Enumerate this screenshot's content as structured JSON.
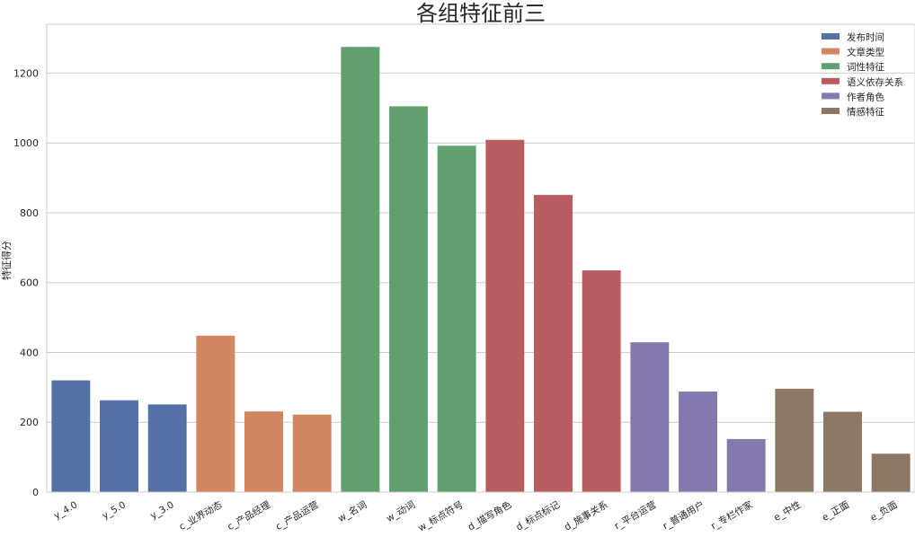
{
  "chart_data": {
    "type": "bar",
    "title": "各组特征前三",
    "xlabel": "",
    "ylabel": "特征得分",
    "ylim": [
      0,
      1340
    ],
    "yticks": [
      0,
      200,
      400,
      600,
      800,
      1000,
      1200
    ],
    "grid": "horizontal",
    "legend_position": "top-right",
    "categories": [
      "y_4.0",
      "y_5.0",
      "y_3.0",
      "c_业界动态",
      "c_产品经理",
      "c_产品运营",
      "w_名词",
      "w_动词",
      "w_标点符号",
      "d_描写角色",
      "d_标点标记",
      "d_施事关系",
      "r_平台运营",
      "r_普通用户",
      "r_专栏作家",
      "e_中性",
      "e_正面",
      "e_负面"
    ],
    "values": [
      320,
      263,
      251,
      448,
      231,
      222,
      1275,
      1105,
      992,
      1009,
      851,
      635,
      429,
      288,
      152,
      296,
      230,
      110
    ],
    "groups": [
      0,
      0,
      0,
      1,
      1,
      1,
      2,
      2,
      2,
      3,
      3,
      3,
      4,
      4,
      4,
      5,
      5,
      5
    ],
    "legend": [
      {
        "label": "发布时间",
        "color": "#5471a5"
      },
      {
        "label": "文章类型",
        "color": "#d0865f"
      },
      {
        "label": "词性特征",
        "color": "#5fa06e"
      },
      {
        "label": "语义依存关系",
        "color": "#b85c5f"
      },
      {
        "label": "作者角色",
        "color": "#8579ad"
      },
      {
        "label": "情感特征",
        "color": "#8c7764"
      }
    ]
  }
}
